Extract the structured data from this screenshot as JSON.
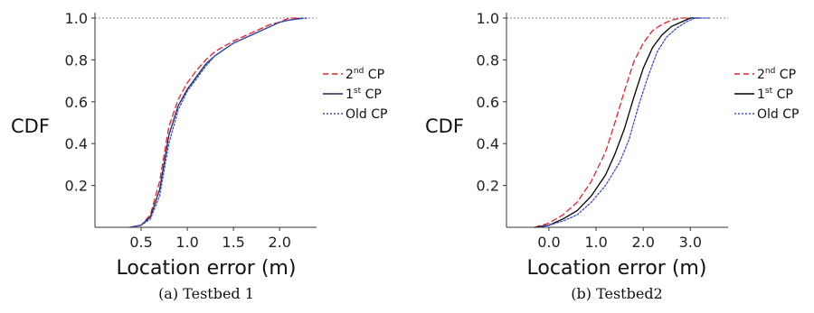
{
  "chart_data": [
    {
      "type": "line",
      "panel": "a",
      "caption": "(a) Testbed 1",
      "xlabel": "Location error (m)",
      "ylabel": "CDF",
      "xlim": [
        0.0,
        2.4
      ],
      "ylim": [
        0.0,
        1.0
      ],
      "xticks": [
        0.5,
        1.0,
        1.5,
        2.0
      ],
      "xtick_labels": [
        "0.5",
        "1.0",
        "1.5",
        "2.0"
      ],
      "yticks": [
        0.2,
        0.4,
        0.6,
        0.8,
        1.0
      ],
      "ytick_labels": [
        "0.2",
        "0.4",
        "0.6",
        "0.8",
        "1.0"
      ],
      "reference_line_y": 1.0,
      "legend_position": "right",
      "series": [
        {
          "name": "2nd CP",
          "label_base": "2",
          "label_sup": "nd",
          "label_rest": " CP",
          "color": "#e8202a",
          "dash": "6,4",
          "points": [
            [
              0.38,
              0.0
            ],
            [
              0.5,
              0.01
            ],
            [
              0.6,
              0.06
            ],
            [
              0.7,
              0.22
            ],
            [
              0.8,
              0.48
            ],
            [
              0.9,
              0.61
            ],
            [
              1.0,
              0.69
            ],
            [
              1.1,
              0.75
            ],
            [
              1.2,
              0.8
            ],
            [
              1.3,
              0.84
            ],
            [
              1.5,
              0.89
            ],
            [
              1.7,
              0.93
            ],
            [
              1.9,
              0.97
            ],
            [
              2.0,
              0.98
            ],
            [
              2.1,
              1.0
            ],
            [
              2.2,
              1.0
            ]
          ]
        },
        {
          "name": "1st CP",
          "label_base": "1",
          "label_sup": "st",
          "label_rest": " CP",
          "color": "#1a2a5a",
          "dash": "",
          "points": [
            [
              0.38,
              0.0
            ],
            [
              0.5,
              0.01
            ],
            [
              0.6,
              0.05
            ],
            [
              0.7,
              0.18
            ],
            [
              0.8,
              0.44
            ],
            [
              0.9,
              0.58
            ],
            [
              1.0,
              0.66
            ],
            [
              1.1,
              0.72
            ],
            [
              1.2,
              0.78
            ],
            [
              1.3,
              0.82
            ],
            [
              1.5,
              0.88
            ],
            [
              1.7,
              0.92
            ],
            [
              1.9,
              0.96
            ],
            [
              2.0,
              0.98
            ],
            [
              2.1,
              0.99
            ],
            [
              2.25,
              1.0
            ]
          ]
        },
        {
          "name": "Old CP",
          "label_base": "Old",
          "label_sup": "",
          "label_rest": " CP",
          "color": "#3a4fd0",
          "dash": "2,2",
          "points": [
            [
              0.38,
              0.0
            ],
            [
              0.5,
              0.01
            ],
            [
              0.6,
              0.04
            ],
            [
              0.7,
              0.15
            ],
            [
              0.8,
              0.4
            ],
            [
              0.9,
              0.56
            ],
            [
              1.0,
              0.65
            ],
            [
              1.1,
              0.71
            ],
            [
              1.2,
              0.77
            ],
            [
              1.3,
              0.82
            ],
            [
              1.5,
              0.88
            ],
            [
              1.7,
              0.92
            ],
            [
              1.9,
              0.96
            ],
            [
              2.0,
              0.98
            ],
            [
              2.1,
              0.99
            ],
            [
              2.3,
              1.0
            ]
          ]
        }
      ]
    },
    {
      "type": "line",
      "panel": "b",
      "caption": "(b) Testbed2",
      "xlabel": "Location error (m)",
      "ylabel": "CDF",
      "xlim": [
        -0.9,
        3.8
      ],
      "ylim": [
        0.0,
        1.0
      ],
      "xticks": [
        0.0,
        1.0,
        2.0,
        3.0
      ],
      "xtick_labels": [
        "0.0",
        "1.0",
        "2.0",
        "3.0"
      ],
      "yticks": [
        0.2,
        0.4,
        0.6,
        0.8,
        1.0
      ],
      "ytick_labels": [
        "0.2",
        "0.4",
        "0.6",
        "0.8",
        "1.0"
      ],
      "reference_line_y": 1.0,
      "legend_position": "right",
      "series": [
        {
          "name": "2nd CP",
          "label_base": "2",
          "label_sup": "nd",
          "label_rest": " CP",
          "color": "#e8202a",
          "dash": "6,4",
          "points": [
            [
              -0.3,
              0.0
            ],
            [
              0.0,
              0.02
            ],
            [
              0.3,
              0.06
            ],
            [
              0.6,
              0.12
            ],
            [
              0.9,
              0.22
            ],
            [
              1.2,
              0.36
            ],
            [
              1.4,
              0.5
            ],
            [
              1.6,
              0.65
            ],
            [
              1.8,
              0.79
            ],
            [
              2.0,
              0.88
            ],
            [
              2.2,
              0.94
            ],
            [
              2.4,
              0.97
            ],
            [
              2.6,
              0.99
            ],
            [
              2.8,
              1.0
            ],
            [
              3.0,
              1.0
            ]
          ]
        },
        {
          "name": "1st CP",
          "label_base": "1",
          "label_sup": "st",
          "label_rest": " CP",
          "color": "#000000",
          "dash": "",
          "points": [
            [
              -0.3,
              0.0
            ],
            [
              0.0,
              0.01
            ],
            [
              0.3,
              0.04
            ],
            [
              0.6,
              0.08
            ],
            [
              0.9,
              0.15
            ],
            [
              1.2,
              0.25
            ],
            [
              1.4,
              0.35
            ],
            [
              1.6,
              0.47
            ],
            [
              1.8,
              0.62
            ],
            [
              2.0,
              0.76
            ],
            [
              2.2,
              0.86
            ],
            [
              2.4,
              0.92
            ],
            [
              2.6,
              0.96
            ],
            [
              2.8,
              0.98
            ],
            [
              3.0,
              1.0
            ],
            [
              3.2,
              1.0
            ]
          ]
        },
        {
          "name": "Old CP",
          "label_base": "Old",
          "label_sup": "",
          "label_rest": " CP",
          "color": "#3a4fd0",
          "dash": "2,2",
          "points": [
            [
              -0.2,
              0.0
            ],
            [
              0.0,
              0.01
            ],
            [
              0.3,
              0.03
            ],
            [
              0.6,
              0.06
            ],
            [
              0.9,
              0.12
            ],
            [
              1.2,
              0.2
            ],
            [
              1.5,
              0.31
            ],
            [
              1.7,
              0.42
            ],
            [
              1.9,
              0.58
            ],
            [
              2.1,
              0.72
            ],
            [
              2.3,
              0.84
            ],
            [
              2.5,
              0.91
            ],
            [
              2.7,
              0.95
            ],
            [
              2.9,
              0.98
            ],
            [
              3.1,
              1.0
            ],
            [
              3.4,
              1.0
            ]
          ]
        }
      ]
    }
  ]
}
